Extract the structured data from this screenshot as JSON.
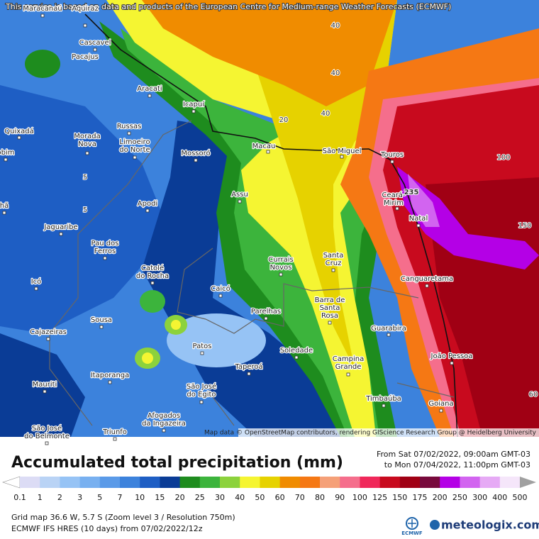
{
  "header": {
    "notice": "This service is based on data and products of the European Centre for Medium-range Weather Forecasts (ECMWF)"
  },
  "map": {
    "cities": [
      {
        "lines": [
          "Maracanaú"
        ]
      },
      {
        "lines": [
          "Aquiraz"
        ]
      },
      {
        "lines": [
          "Cascavel"
        ]
      },
      {
        "lines": [
          "Pacajus"
        ]
      },
      {
        "lines": [
          "Aracati"
        ]
      },
      {
        "lines": [
          "Icapuí"
        ]
      },
      {
        "lines": [
          "Quixadá"
        ]
      },
      {
        "lines": [
          "Russas"
        ]
      },
      {
        "lines": [
          "Morada",
          "Nova"
        ]
      },
      {
        "lines": [
          "Limoeiro",
          "do Norte"
        ]
      },
      {
        "lines": [
          "Mossoró"
        ]
      },
      {
        "lines": [
          "obim"
        ]
      },
      {
        "lines": [
          "Macau"
        ]
      },
      {
        "lines": [
          "São Miguel"
        ]
      },
      {
        "lines": [
          "Touros"
        ]
      },
      {
        "lines": [
          "Assu"
        ]
      },
      {
        "lines": [
          "Apodi"
        ]
      },
      {
        "lines": [
          "Ceará-",
          "Mirim"
        ]
      },
      {
        "lines": [
          "Natal"
        ]
      },
      {
        "lines": [
          "hã"
        ]
      },
      {
        "lines": [
          "Jaguaribe"
        ]
      },
      {
        "lines": [
          "Pau dos",
          "Ferros"
        ]
      },
      {
        "lines": [
          "Currais",
          "Novos"
        ]
      },
      {
        "lines": [
          "Santa",
          "Cruz"
        ]
      },
      {
        "lines": [
          "Catolé",
          "do Rocha"
        ]
      },
      {
        "lines": [
          "Canguaretama"
        ]
      },
      {
        "lines": [
          "Icó"
        ]
      },
      {
        "lines": [
          "Caicó"
        ]
      },
      {
        "lines": [
          "Barra de",
          "Santa",
          "Rosa"
        ]
      },
      {
        "lines": [
          "Parelhas"
        ]
      },
      {
        "lines": [
          "Sousa"
        ]
      },
      {
        "lines": [
          "Cajazeiras"
        ]
      },
      {
        "lines": [
          "Guarabira"
        ]
      },
      {
        "lines": [
          "Patos"
        ]
      },
      {
        "lines": [
          "Soledade"
        ]
      },
      {
        "lines": [
          "João Pessoa"
        ]
      },
      {
        "lines": [
          "Campina",
          "Grande"
        ]
      },
      {
        "lines": [
          "Itaporanga"
        ]
      },
      {
        "lines": [
          "Taperoá"
        ]
      },
      {
        "lines": [
          "Mauriti"
        ]
      },
      {
        "lines": [
          "São José",
          "do Egito"
        ]
      },
      {
        "lines": [
          "Timbaúba"
        ]
      },
      {
        "lines": [
          "Goiana"
        ]
      },
      {
        "lines": [
          "Afogados",
          "da Ingazeira"
        ]
      },
      {
        "lines": [
          "São José",
          "do Belmonte"
        ]
      },
      {
        "lines": [
          "Triunfo"
        ]
      }
    ],
    "contour_labels": [
      "40",
      "40",
      "40",
      "20",
      "5",
      "5",
      "100",
      "150",
      "60",
      "235"
    ],
    "attribution": "Map data © OpenStreetMap contributors, rendering GIScience Research Group @ Heidelberg University"
  },
  "title": "Accumulated total precipitation (mm)",
  "period": {
    "from": "From Sat 07/02/2022, 09:00am GMT-03",
    "to": "to Mon 07/04/2022, 11:00pm GMT-03"
  },
  "legend": {
    "labels": [
      0.1,
      1,
      2,
      3,
      5,
      7,
      10,
      15,
      20,
      25,
      30,
      40,
      50,
      60,
      70,
      80,
      90,
      100,
      125,
      150,
      175,
      200,
      250,
      300,
      400,
      500
    ],
    "colors": [
      "#ffffff",
      "#dcdcf5",
      "#b9d3f5",
      "#96c3f5",
      "#78b0f0",
      "#5a9ae8",
      "#3c82dc",
      "#1e5ec4",
      "#0a3c96",
      "#1e8c1e",
      "#3cb43c",
      "#8cd23c",
      "#f5f532",
      "#e6d200",
      "#f08c00",
      "#f57814",
      "#f5a078",
      "#f56e8c",
      "#f0285a",
      "#c80a1e",
      "#a00014",
      "#780a3c",
      "#b400e6",
      "#d264f0",
      "#e6aaf5",
      "#f5e6fa",
      "#d2d2d2",
      "#a0a0a0"
    ]
  },
  "footer": {
    "grid": "Grid map 36.6 W, 5.7 S (Zoom level 3 / Resolution 750m)",
    "model": "ECMWF IFS HRES (10 days) from 07/02/2022/12z"
  },
  "logos": {
    "ecmwf": "ECMWF",
    "meteologix": "meteologix.com"
  }
}
